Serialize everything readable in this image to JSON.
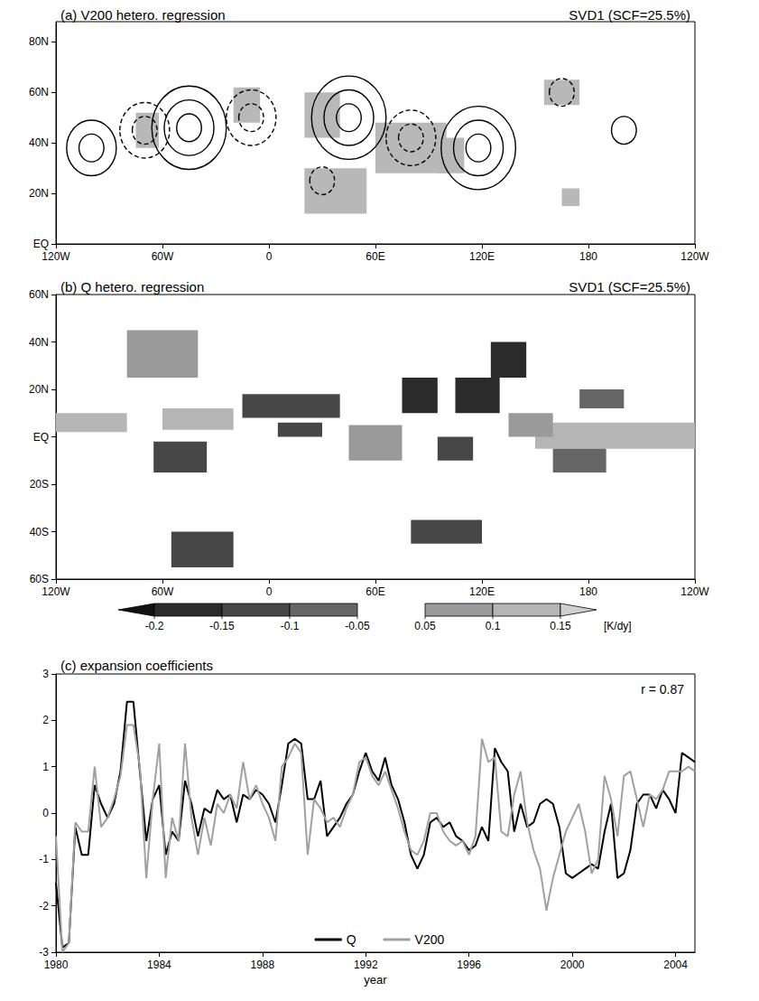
{
  "chart_data": [
    {
      "type": "contour_map",
      "title": "(a) V200 hetero. regression",
      "subtitle": "SVD1 (SCF=25.5%)",
      "xlim": [
        -120,
        240
      ],
      "xticks": [
        {
          "value": -120,
          "label": "120W"
        },
        {
          "value": -60,
          "label": "60W"
        },
        0,
        {
          "value": 60,
          "label": "60E"
        },
        {
          "value": 120,
          "label": "120E"
        },
        {
          "value": 180,
          "label": "180"
        },
        {
          "value": 240,
          "label": "120W"
        }
      ],
      "ylim": [
        0,
        88
      ],
      "yticks": [
        {
          "value": 0,
          "label": "EQ"
        },
        {
          "value": 20,
          "label": "20N"
        },
        {
          "value": 40,
          "label": "40N"
        },
        {
          "value": 60,
          "label": "60N"
        },
        {
          "value": 80,
          "label": "80N"
        }
      ],
      "grid": false,
      "significant_regions": [
        [
          -75,
          38,
          -62,
          52
        ],
        [
          -20,
          48,
          -5,
          62
        ],
        [
          20,
          42,
          40,
          60
        ],
        [
          60,
          28,
          100,
          48
        ],
        [
          20,
          12,
          55,
          30
        ],
        [
          95,
          28,
          110,
          42
        ],
        [
          155,
          55,
          175,
          65
        ],
        [
          165,
          15,
          175,
          22
        ]
      ],
      "centers": {
        "lon": [
          -100,
          -70,
          -45,
          -10,
          45,
          80,
          118,
          165,
          200,
          30
        ],
        "lat": [
          38,
          45,
          46,
          50,
          50,
          42,
          38,
          60,
          45,
          25
        ],
        "values": [
          2,
          -2,
          3,
          -2,
          3,
          -2,
          3,
          -1,
          1,
          -1
        ]
      }
    },
    {
      "type": "shaded_map",
      "title": "(b) Q hetero. regression",
      "subtitle": "SVD1 (SCF=25.5%)",
      "xlim": [
        -120,
        240
      ],
      "xticks": [
        {
          "value": -120,
          "label": "120W"
        },
        {
          "value": -60,
          "label": "60W"
        },
        0,
        {
          "value": 60,
          "label": "60E"
        },
        {
          "value": 120,
          "label": "120E"
        },
        {
          "value": 180,
          "label": "180"
        },
        {
          "value": 240,
          "label": "120W"
        }
      ],
      "ylim": [
        -60,
        60
      ],
      "yticks": [
        {
          "value": -60,
          "label": "60S"
        },
        {
          "value": -40,
          "label": "40S"
        },
        {
          "value": -20,
          "label": "20S"
        },
        {
          "value": 0,
          "label": "EQ"
        },
        {
          "value": 20,
          "label": "20N"
        },
        {
          "value": 40,
          "label": "40N"
        },
        {
          "value": 60,
          "label": "60N"
        }
      ],
      "grid": false,
      "regions": [
        [
          -120,
          2,
          -80,
          10,
          0.12
        ],
        [
          -60,
          3,
          -20,
          12,
          0.12
        ],
        [
          150,
          -5,
          240,
          6,
          0.12
        ],
        [
          -65,
          -15,
          -35,
          -2,
          -0.12
        ],
        [
          -15,
          8,
          40,
          18,
          -0.12
        ],
        [
          5,
          0,
          30,
          6,
          -0.12
        ],
        [
          75,
          10,
          95,
          25,
          -0.17
        ],
        [
          105,
          10,
          130,
          25,
          -0.17
        ],
        [
          125,
          25,
          145,
          40,
          -0.17
        ],
        [
          95,
          -10,
          115,
          0,
          -0.12
        ],
        [
          135,
          0,
          160,
          10,
          0.07
        ],
        [
          45,
          -10,
          75,
          5,
          0.07
        ],
        [
          80,
          -45,
          120,
          -35,
          -0.12
        ],
        [
          -55,
          -55,
          -20,
          -40,
          -0.12
        ],
        [
          -80,
          25,
          -40,
          45,
          0.07
        ],
        [
          175,
          12,
          200,
          20,
          -0.07
        ],
        [
          160,
          -15,
          190,
          -5,
          -0.07
        ]
      ],
      "colorbar": {
        "ticks": [
          -0.2,
          -0.15,
          -0.1,
          -0.05,
          0.05,
          0.1,
          0.15
        ],
        "colors": [
          "#111111",
          "#2b2b2b",
          "#474747",
          "#666666",
          "#ffffff",
          "#9a9a9a",
          "#b5b5b5",
          "#d0d0d0"
        ],
        "label": "[K/dy]"
      }
    },
    {
      "type": "line",
      "title": "(c) expansion coefficients",
      "x_label": "year",
      "annotations": [
        "r = 0.87"
      ],
      "xlim": [
        1980,
        2004.75
      ],
      "xticks": [
        1980,
        1984,
        1988,
        1992,
        1996,
        2000,
        2004
      ],
      "ylim": [
        -3,
        3
      ],
      "yticks": [
        -3,
        -2,
        -1,
        0,
        1,
        2,
        3
      ],
      "grid": false,
      "legend": "bottom",
      "x": [
        1980,
        1980.25,
        1980.5,
        1980.75,
        1981,
        1981.25,
        1981.5,
        1981.75,
        1982,
        1982.25,
        1982.5,
        1982.75,
        1983,
        1983.25,
        1983.5,
        1983.75,
        1984,
        1984.25,
        1984.5,
        1984.75,
        1985,
        1985.25,
        1985.5,
        1985.75,
        1986,
        1986.25,
        1986.5,
        1986.75,
        1987,
        1987.25,
        1987.5,
        1987.75,
        1988,
        1988.25,
        1988.5,
        1988.75,
        1989,
        1989.25,
        1989.5,
        1989.75,
        1990,
        1990.25,
        1990.5,
        1990.75,
        1991,
        1991.25,
        1991.5,
        1991.75,
        1992,
        1992.25,
        1992.5,
        1992.75,
        1993,
        1993.25,
        1993.5,
        1993.75,
        1994,
        1994.25,
        1994.5,
        1994.75,
        1995,
        1995.25,
        1995.5,
        1995.75,
        1996,
        1996.25,
        1996.5,
        1996.75,
        1997,
        1997.25,
        1997.5,
        1997.75,
        1998,
        1998.25,
        1998.5,
        1998.75,
        1999,
        1999.25,
        1999.5,
        1999.75,
        2000,
        2000.25,
        2000.5,
        2000.75,
        2001,
        2001.25,
        2001.5,
        2001.75,
        2002,
        2002.25,
        2002.5,
        2002.75,
        2003,
        2003.25,
        2003.5,
        2003.75,
        2004,
        2004.25,
        2004.5,
        2004.75
      ],
      "series": [
        {
          "name": "Q",
          "color": "#000000",
          "values": [
            -1.5,
            -2.9,
            -2.8,
            -0.3,
            -0.9,
            -0.9,
            0.6,
            0.2,
            -0.1,
            0.2,
            0.9,
            2.4,
            2.4,
            0.9,
            -0.6,
            0.3,
            0.6,
            -0.9,
            -0.4,
            -0.6,
            0.7,
            0.2,
            -0.5,
            0.1,
            0.0,
            0.5,
            0.3,
            0.4,
            -0.2,
            0.4,
            0.3,
            0.5,
            0.4,
            0.2,
            -0.2,
            0.6,
            1.5,
            1.6,
            1.5,
            0.3,
            0.3,
            0.7,
            -0.5,
            -0.3,
            -0.1,
            0.2,
            0.4,
            0.9,
            1.3,
            0.9,
            0.7,
            1.2,
            0.6,
            0.3,
            -0.2,
            -0.9,
            -1.2,
            -0.9,
            -0.2,
            -0.1,
            -0.3,
            -0.2,
            -0.5,
            -0.6,
            -0.8,
            -0.7,
            -0.3,
            -0.6,
            1.4,
            1.1,
            0.9,
            -0.4,
            0.2,
            -0.3,
            -0.2,
            0.2,
            0.3,
            0.2,
            -0.3,
            -1.3,
            -1.4,
            -1.3,
            -1.2,
            -1.1,
            -1.2,
            -0.4,
            0.2,
            -1.4,
            -1.3,
            -0.8,
            0.2,
            0.4,
            0.4,
            0.1,
            0.5,
            0.3,
            0.0,
            1.3,
            1.2,
            1.1
          ]
        },
        {
          "name": "V200",
          "color": "#a0a0a0",
          "values": [
            -0.5,
            -3.0,
            -2.8,
            -0.2,
            -0.4,
            -0.4,
            1.0,
            -0.3,
            -0.1,
            0.3,
            0.8,
            1.9,
            1.9,
            1.0,
            -1.4,
            0.3,
            1.5,
            -1.4,
            -0.1,
            -0.6,
            1.5,
            -0.1,
            -0.9,
            -0.1,
            -0.7,
            0.2,
            0.0,
            0.4,
            0.1,
            1.1,
            0.3,
            0.6,
            0.2,
            -0.1,
            -0.6,
            1.0,
            1.2,
            1.5,
            1.3,
            -0.9,
            0.3,
            0.1,
            -0.2,
            -0.1,
            -0.3,
            0.1,
            0.4,
            1.1,
            1.2,
            0.8,
            0.6,
            0.9,
            0.5,
            0.1,
            -0.4,
            -0.8,
            -0.9,
            -0.6,
            0.0,
            0.0,
            -0.4,
            -0.6,
            -0.7,
            -0.6,
            -0.9,
            -0.5,
            1.6,
            1.1,
            1.2,
            -0.4,
            -0.5,
            0.4,
            0.9,
            -0.2,
            -0.8,
            -1.2,
            -2.1,
            -1.4,
            -0.9,
            -0.4,
            -0.1,
            0.2,
            -0.4,
            -1.3,
            -1.0,
            0.8,
            0.3,
            -0.5,
            0.8,
            0.9,
            0.3,
            -0.3,
            0.4,
            0.3,
            0.5,
            0.9,
            0.9,
            0.9,
            1.0,
            0.9
          ]
        }
      ]
    }
  ]
}
